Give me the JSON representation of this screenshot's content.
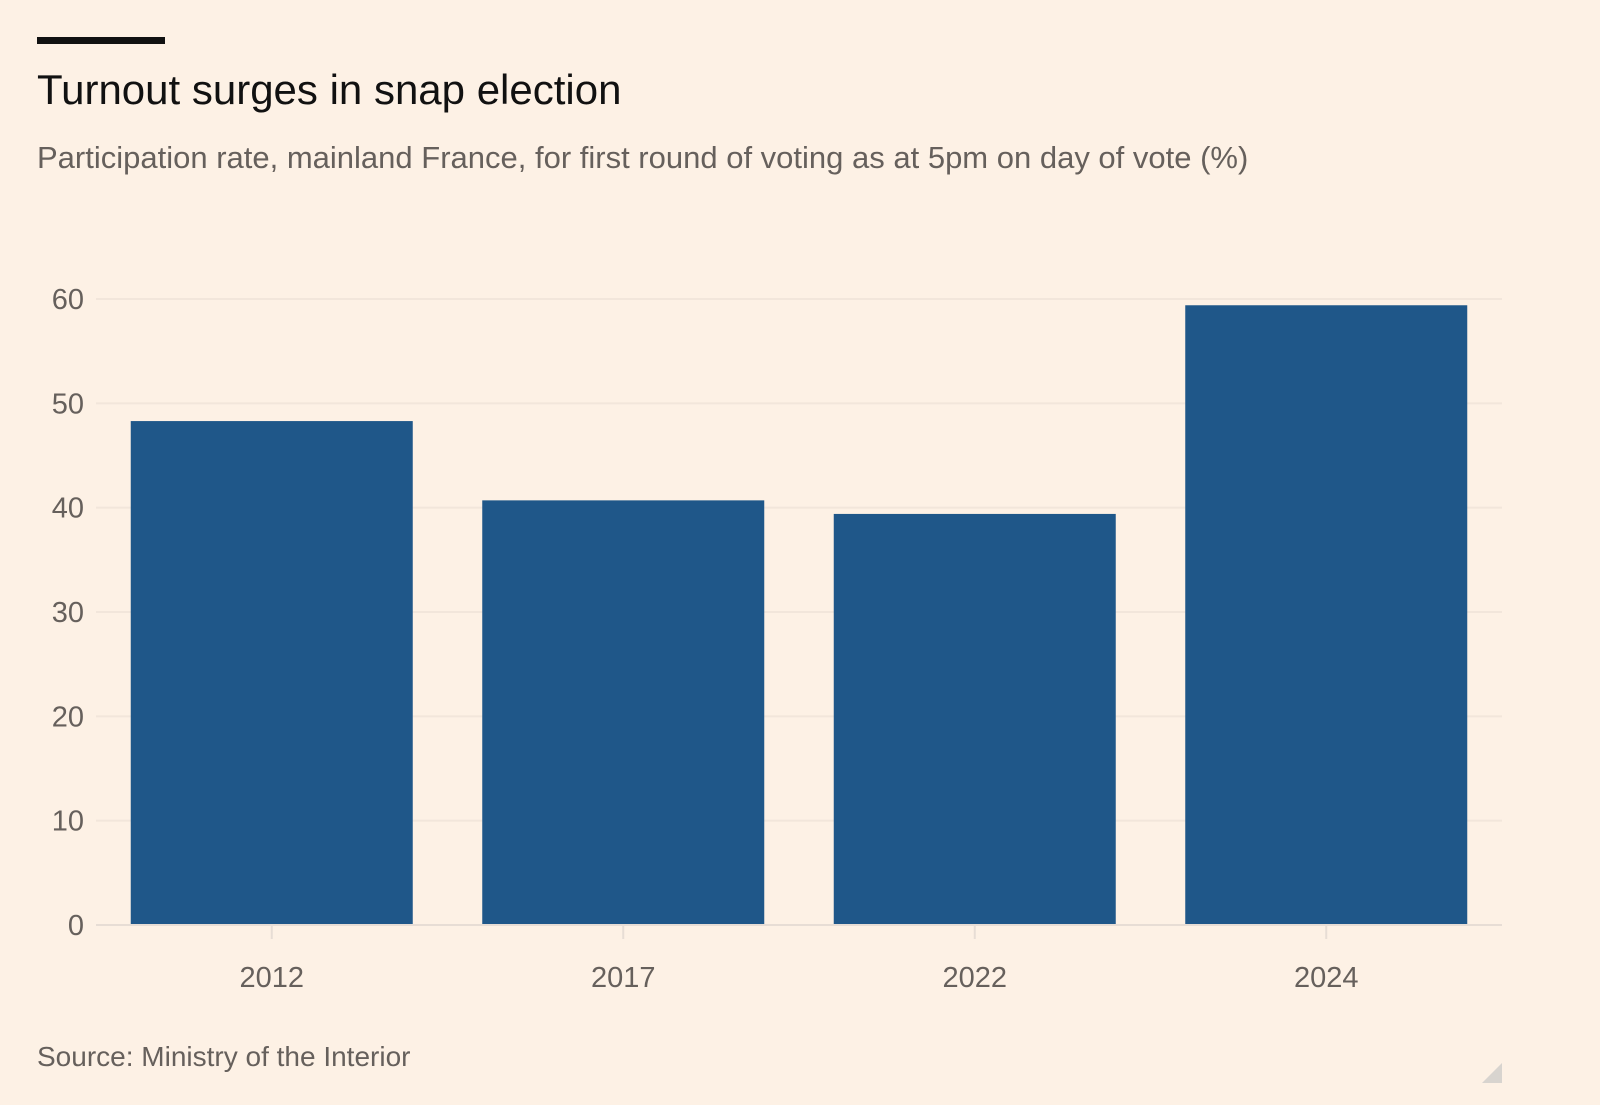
{
  "header": {
    "title": "Turnout surges in snap election",
    "subtitle": "Participation rate, mainland France, for first round of voting as at 5pm on day of vote (%)"
  },
  "footer": {
    "source": "Source: Ministry of the Interior"
  },
  "chart_data": {
    "type": "bar",
    "title": "Turnout surges in snap election",
    "subtitle": "Participation rate, mainland France, for first round of voting as at 5pm on day of vote (%)",
    "categories": [
      "2012",
      "2017",
      "2022",
      "2024"
    ],
    "values": [
      48.3,
      40.7,
      39.4,
      59.4
    ],
    "xlabel": "",
    "ylabel": "",
    "ylim": [
      0,
      60
    ],
    "yticks": [
      0,
      10,
      20,
      30,
      40,
      50,
      60
    ],
    "grid": true,
    "legend": "none",
    "colors": {
      "bar": "#1f5789",
      "grid": "#f2e6db",
      "axis": "#e7ddd5",
      "text": "#66605c",
      "background": "#fdf1e5"
    }
  }
}
